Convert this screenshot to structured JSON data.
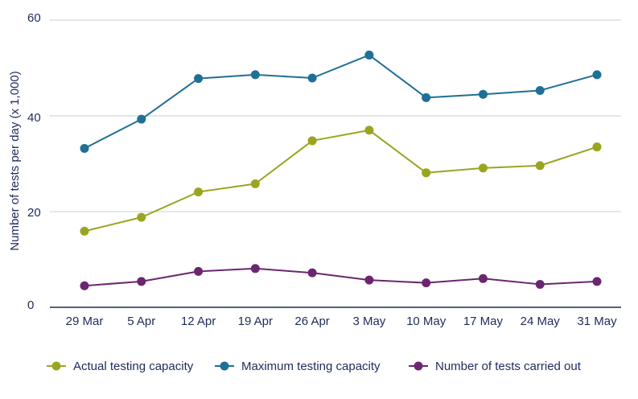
{
  "chart_data": {
    "type": "line",
    "title": "",
    "xlabel": "",
    "ylabel": "Number of tests per day (x 1,000)",
    "categories": [
      "29 Mar",
      "5 Apr",
      "12 Apr",
      "19 Apr",
      "26 Apr",
      "3 May",
      "10 May",
      "17 May",
      "24 May",
      "31 May"
    ],
    "ylim": [
      0,
      60
    ],
    "yticks": [
      "0",
      "20",
      "40",
      "60"
    ],
    "grid": true,
    "legend_position": "bottom",
    "series": [
      {
        "name": "Actual testing capacity",
        "color": "#9aa51f",
        "values": [
          15.9,
          18.8,
          24.1,
          25.8,
          34.8,
          37.0,
          28.1,
          29.1,
          29.6,
          33.5
        ]
      },
      {
        "name": "Maximum testing capacity",
        "color": "#1f6f96",
        "values": [
          33.2,
          39.3,
          47.8,
          48.6,
          47.9,
          52.7,
          43.8,
          44.5,
          45.3,
          48.6
        ]
      },
      {
        "name": "Number of tests carried out",
        "color": "#6b2670",
        "values": [
          4.5,
          5.4,
          7.5,
          8.1,
          7.2,
          5.7,
          5.1,
          6.0,
          4.8,
          5.4
        ]
      }
    ]
  }
}
